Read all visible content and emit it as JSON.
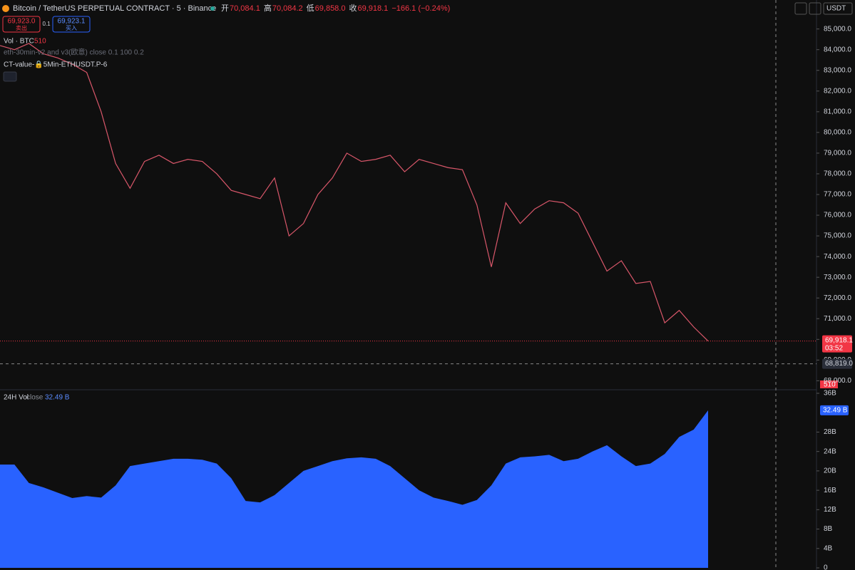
{
  "header": {
    "symbol": "Bitcoin / TetherUS PERPETUAL CONTRACT · 5 · Binance",
    "ohlc": [
      {
        "label": "开",
        "value": "70,084.1"
      },
      {
        "label": "高",
        "value": "70,084.2"
      },
      {
        "label": "低",
        "value": "69,858.0"
      },
      {
        "label": "收",
        "value": "69,918.1"
      }
    ],
    "change": "−166.1 (−0.24%)",
    "sell_price": "69,923.0",
    "sell_label": "卖出",
    "qty": "0.1",
    "buy_price": "69,923.1",
    "buy_label": "买入",
    "currency": "USDT"
  },
  "indicators": {
    "vol_name": "Vol · BTC",
    "vol_value": "510",
    "eth_line": "eth-30min-v2 and v3(欧意) close 0.1 100 0.2",
    "ct_line": "CT-value-🔒5Min-ETHUSDT.P-6",
    "vol_axis_label": "510"
  },
  "chart_data": [
    {
      "type": "line",
      "color": "#d9576a",
      "values": [
        84200,
        84000,
        84300,
        83800,
        83600,
        83300,
        82900,
        81000,
        78500,
        77300,
        78600,
        78900,
        78500,
        78700,
        78600,
        78000,
        77200,
        77000,
        76800,
        77800,
        75000,
        75600,
        77000,
        77800,
        79000,
        78600,
        78700,
        78900,
        78100,
        78700,
        78500,
        78300,
        78200,
        76500,
        73500,
        76600,
        75600,
        76300,
        76700,
        76600,
        76100,
        74700,
        73300,
        73800,
        72700,
        72800,
        70800,
        71400,
        70600,
        69918.1
      ],
      "ylim": [
        67600,
        86400
      ],
      "yticks": [
        {
          "value": 68000,
          "label": "68,000.0"
        },
        {
          "value": 69000,
          "label": "69,000.0"
        },
        {
          "value": 70000,
          "label": "70,000.0"
        },
        {
          "value": 71000,
          "label": "71,000.0"
        },
        {
          "value": 72000,
          "label": "72,000.0"
        },
        {
          "value": 73000,
          "label": "73,000.0"
        },
        {
          "value": 74000,
          "label": "74,000.0"
        },
        {
          "value": 75000,
          "label": "75,000.0"
        },
        {
          "value": 76000,
          "label": "76,000.0"
        },
        {
          "value": 77000,
          "label": "77,000.0"
        },
        {
          "value": 78000,
          "label": "78,000.0"
        },
        {
          "value": 79000,
          "label": "79,000.0"
        },
        {
          "value": 80000,
          "label": "80,000.0"
        },
        {
          "value": 81000,
          "label": "81,000.0"
        },
        {
          "value": 82000,
          "label": "82,000.0"
        },
        {
          "value": 83000,
          "label": "83,000.0"
        },
        {
          "value": 84000,
          "label": "84,000.0"
        },
        {
          "value": 85000,
          "label": "85,000.0"
        }
      ],
      "last": {
        "value": 69918.1,
        "label": "69,918.1"
      },
      "countdown": "03:52",
      "crosshair": {
        "value": 68819,
        "label": "68,819.0"
      }
    },
    {
      "type": "area",
      "color": "#2962ff",
      "title": "24H Vol",
      "source": "close",
      "values": [
        21.3,
        21.3,
        17.5,
        16.6,
        15.5,
        14.4,
        14.8,
        14.5,
        17.0,
        21.0,
        21.5,
        22.0,
        22.5,
        22.5,
        22.3,
        21.5,
        18.5,
        13.8,
        13.5,
        15.0,
        17.5,
        20.0,
        21.0,
        22.0,
        22.6,
        22.8,
        22.5,
        21.0,
        18.5,
        16.0,
        14.5,
        13.8,
        13.0,
        14.0,
        17.0,
        21.5,
        22.8,
        23.0,
        23.3,
        22.0,
        22.5,
        24.0,
        25.3,
        23.0,
        21.0,
        21.5,
        23.5,
        27.0,
        28.5,
        32.49
      ],
      "value_labels": [
        null,
        null,
        null,
        null,
        null,
        null,
        null,
        null,
        null,
        null,
        null,
        null,
        null,
        null,
        null,
        null,
        null,
        null,
        null,
        null,
        null,
        null,
        null,
        null,
        null,
        null,
        null,
        null,
        null,
        null,
        null,
        null,
        null,
        null,
        null,
        null,
        null,
        null,
        null,
        null,
        null,
        null,
        null,
        null,
        null,
        null,
        null,
        null,
        null,
        "32.49 B"
      ],
      "ylim": [
        0,
        36
      ],
      "yticks": [
        0,
        {
          "value": 4,
          "label": "4B"
        },
        {
          "value": 8,
          "label": "8B"
        },
        {
          "value": 12,
          "label": "12B"
        },
        {
          "value": 16,
          "label": "16B"
        },
        {
          "value": 20,
          "label": "20B"
        },
        {
          "value": 24,
          "label": "24B"
        },
        {
          "value": 28,
          "label": "28B"
        },
        {
          "value": 36,
          "label": "36B"
        }
      ]
    }
  ]
}
